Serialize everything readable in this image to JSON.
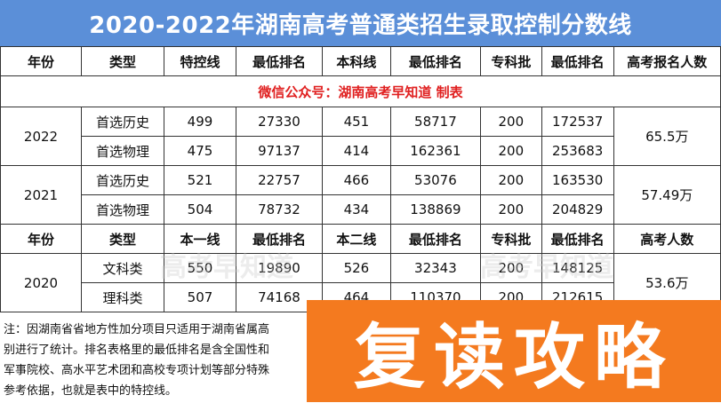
{
  "title": "2020-2022年湖南高考普通类招生录取控制分数线",
  "header1": [
    "年份",
    "类型",
    "特控线",
    "最低排名",
    "本科线",
    "最低排名",
    "专科批",
    "最低排名",
    "高考报名人数"
  ],
  "wechat_note": "微信公众号：湖南高考早知道 制表",
  "y2022": {
    "year": "2022",
    "rows": [
      [
        "首选历史",
        "499",
        "27330",
        "451",
        "58717",
        "200",
        "172537"
      ],
      [
        "首选物理",
        "475",
        "97137",
        "414",
        "162361",
        "200",
        "253683"
      ]
    ],
    "applicants": "65.5万"
  },
  "y2021": {
    "year": "2021",
    "rows": [
      [
        "首选历史",
        "521",
        "22757",
        "466",
        "53076",
        "200",
        "163530"
      ],
      [
        "首选物理",
        "504",
        "78732",
        "434",
        "138869",
        "200",
        "204829"
      ]
    ],
    "applicants": "57.49万"
  },
  "header2": [
    "年份",
    "类型",
    "本一线",
    "最低排名",
    "本二线",
    "最低排名",
    "专科批",
    "最低排名",
    "高考人数"
  ],
  "y2020": {
    "year": "2020",
    "rows": [
      [
        "文科类",
        "550",
        "19890",
        "526",
        "32343",
        "200",
        "148125"
      ],
      [
        "理科类",
        "507",
        "74168",
        "464",
        "110370",
        "200",
        "212615"
      ]
    ],
    "applicants": "53.6万"
  },
  "note_lines": [
    "注：因湖南省省地方性加分项目只适用于湖南省属高",
    "别进行了统计。排名表格里的最低排名是含全国性和",
    "军事院校、高水平艺术团和高校专项计划等部分特殊",
    "参考依据，也就是表中的特控线。"
  ],
  "banner": "复读攻略",
  "watermark": "高考早知道"
}
